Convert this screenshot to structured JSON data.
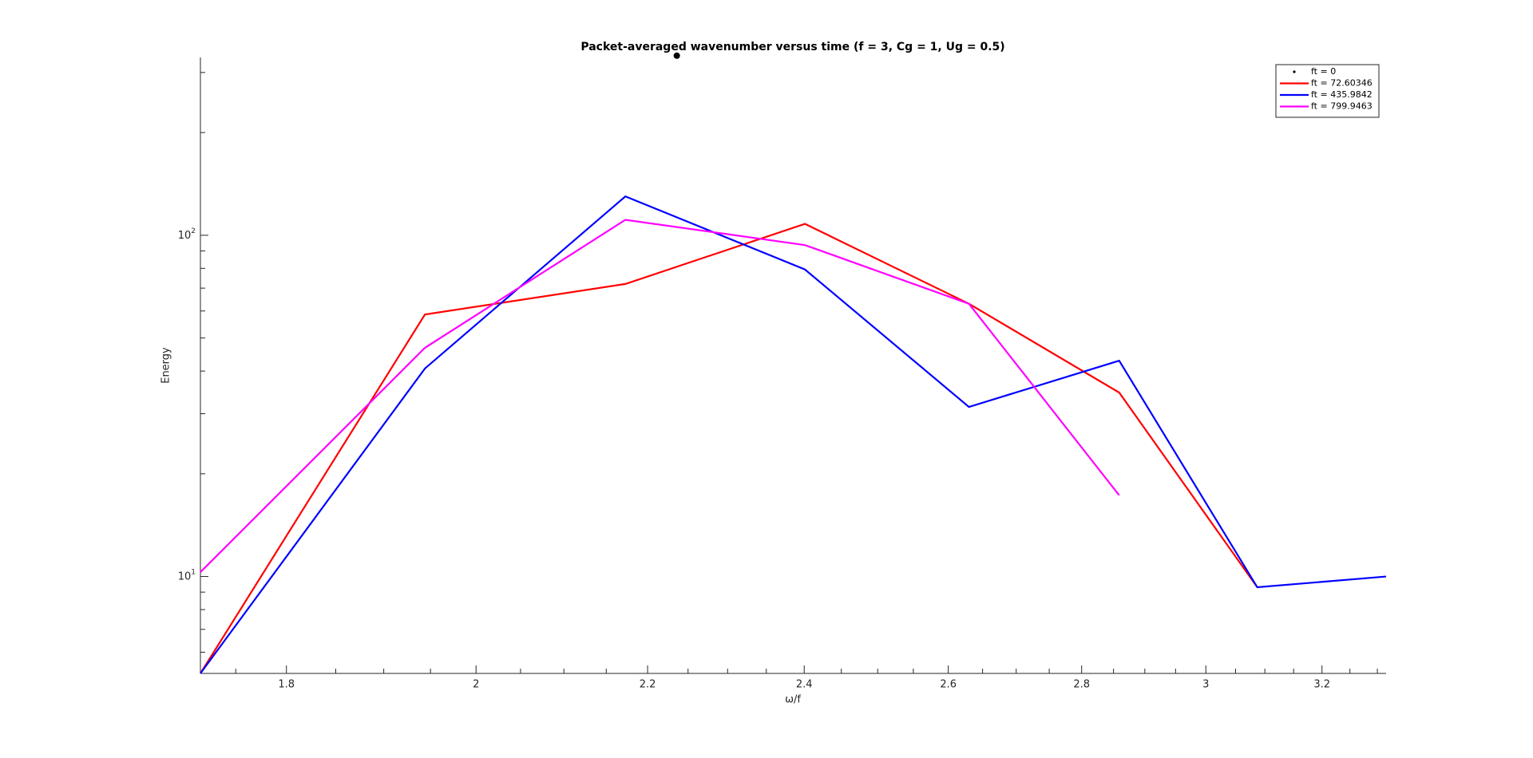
{
  "chart_data": {
    "type": "line",
    "title": "Packet-averaged wavenumber versus time (f = 3, Cg = 1, Ug = 0.5)",
    "x_label": "ω/f",
    "y_label": "Energy",
    "xscale": "log",
    "yscale": "log",
    "x": [
      1.716,
      1.944,
      2.173,
      2.401,
      2.63,
      2.859,
      3.087,
      3.316
    ],
    "series": [
      {
        "name": "ft = 0",
        "color": "#000000",
        "marker": "dot",
        "x": [
          2.236
        ],
        "values": [
          336
        ]
      },
      {
        "name": "ft = 72.60346",
        "color": "#ff0000",
        "values": [
          5.2,
          58.6,
          72.0,
          108,
          63.0,
          34.6,
          9.3,
          null
        ]
      },
      {
        "name": "ft = 435.9842",
        "color": "#0000ff",
        "values": [
          5.2,
          40.7,
          130,
          79.4,
          31.4,
          42.9,
          9.3,
          10.0
        ]
      },
      {
        "name": "ft = 799.9463",
        "color": "#ff00ff",
        "values": [
          10.3,
          46.8,
          111,
          93.6,
          63.0,
          17.3,
          null,
          null
        ]
      }
    ],
    "xlim": [
      1.716,
      3.316
    ],
    "ylim": [
      5.2,
      332
    ],
    "xticks": [
      1.8,
      2,
      2.2,
      2.4,
      2.6,
      2.8,
      3,
      3.2
    ],
    "xminorticks": [
      1.75,
      1.85,
      1.9,
      1.95,
      2.05,
      2.1,
      2.15,
      2.25,
      2.3,
      2.35,
      2.45,
      2.5,
      2.55,
      2.65,
      2.7,
      2.75,
      2.85,
      2.9,
      2.95,
      3.05,
      3.1,
      3.15,
      3.25,
      3.3
    ],
    "yticks": [
      {
        "value": 10,
        "label": "10^1"
      },
      {
        "value": 100,
        "label": "10^2"
      }
    ],
    "yminorticks": [
      6,
      7,
      8,
      9,
      20,
      30,
      40,
      50,
      60,
      70,
      80,
      90,
      200,
      300
    ],
    "legend": "top-right"
  }
}
